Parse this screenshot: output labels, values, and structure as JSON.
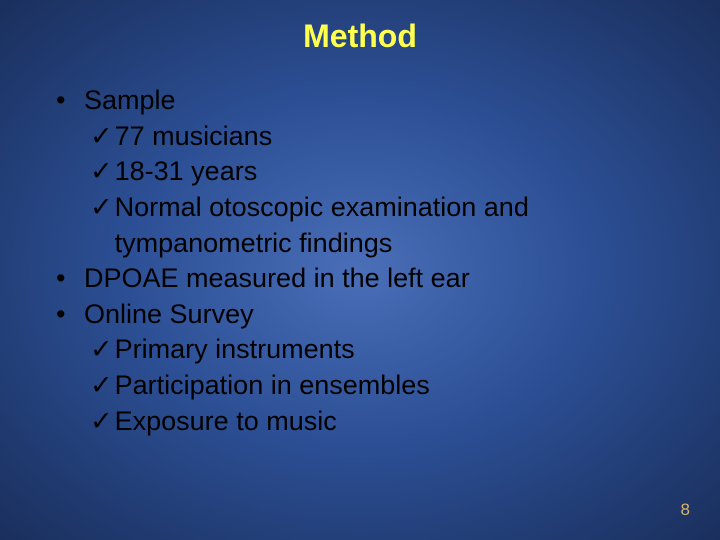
{
  "slide": {
    "title": "Method",
    "title_fontsize": 32,
    "title_color": "#ffff4d",
    "body_fontsize": 27,
    "body_color": "#000000",
    "background_gradient": {
      "center": "#4a6fb8",
      "mid": "#2c4f95",
      "edge": "#1a2f5c"
    },
    "bullet_char": "•",
    "check_char": "✓",
    "items": [
      {
        "type": "bullet",
        "text": "Sample"
      },
      {
        "type": "check",
        "text": "77 musicians"
      },
      {
        "type": "check",
        "text": "18-31 years"
      },
      {
        "type": "check",
        "text": "Normal otoscopic examination and tympanometric findings"
      },
      {
        "type": "bullet",
        "text": "DPOAE measured in the left ear"
      },
      {
        "type": "bullet",
        "text": "Online Survey"
      },
      {
        "type": "check",
        "text": "Primary instruments"
      },
      {
        "type": "check",
        "text": "Participation in ensembles"
      },
      {
        "type": "check",
        "text": "Exposure to music"
      }
    ],
    "page_number": "8",
    "page_number_color": "#d9b36b",
    "page_number_fontsize": 17
  }
}
